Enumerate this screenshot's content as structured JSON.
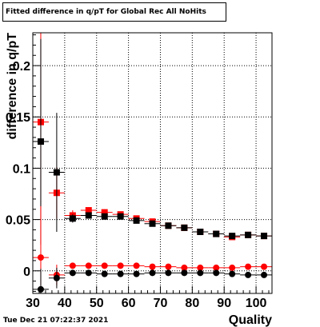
{
  "title": "Fitted difference in q/pT  for Global Rec All NoHits",
  "timestamp": "Tue Dec 21 07:22:37 2021",
  "chart_data": {
    "type": "scatter",
    "title": "Fitted difference in q/pT  for Global Rec All NoHits",
    "xlabel": "Quality",
    "ylabel": "difference in q/pT",
    "xlim": [
      30,
      105
    ],
    "ylim": [
      -0.022,
      0.232
    ],
    "grid": true,
    "x_ticks": [
      30,
      40,
      50,
      60,
      70,
      80,
      90,
      100
    ],
    "x_tick_labels": [
      "30",
      "40",
      "50",
      "60",
      "70",
      "80",
      "90",
      "100"
    ],
    "y_ticks": [
      0,
      0.05,
      0.1,
      0.15,
      0.2
    ],
    "y_tick_labels": [
      "0",
      "0.05",
      "0.1",
      "0.15",
      "0.2"
    ],
    "series": [
      {
        "marker": "square",
        "color": "#ff0000",
        "x": [
          32.5,
          37.5,
          42.5,
          47.5,
          52.5,
          57.5,
          62.5,
          67.5,
          72.5,
          77.5,
          82.5,
          87.5,
          92.5,
          97.5,
          102.5
        ],
        "y": [
          0.145,
          0.076,
          0.054,
          0.059,
          0.057,
          0.055,
          0.051,
          0.048,
          0.044,
          0.042,
          0.038,
          0.036,
          0.033,
          0.035,
          0.034
        ],
        "yerr": [
          0.12,
          0.025,
          0.005,
          0.003,
          0.003,
          0.002,
          0.002,
          0.002,
          0.002,
          0.002,
          0.002,
          0.002,
          0.002,
          0.002,
          0.002
        ]
      },
      {
        "marker": "square",
        "color": "#000000",
        "x": [
          32.5,
          37.5,
          42.5,
          47.5,
          52.5,
          57.5,
          62.5,
          67.5,
          72.5,
          77.5,
          82.5,
          87.5,
          92.5,
          97.5,
          102.5
        ],
        "y": [
          0.126,
          0.096,
          0.051,
          0.054,
          0.053,
          0.053,
          0.049,
          0.046,
          0.044,
          0.042,
          0.038,
          0.036,
          0.034,
          0.035,
          0.034
        ],
        "yerr": [
          0.1,
          0.058,
          0.004,
          0.003,
          0.003,
          0.002,
          0.002,
          0.002,
          0.002,
          0.002,
          0.002,
          0.002,
          0.002,
          0.002,
          0.002
        ]
      },
      {
        "marker": "circle",
        "color": "#ff0000",
        "x": [
          32.5,
          37.5,
          42.5,
          47.5,
          52.5,
          57.5,
          62.5,
          67.5,
          72.5,
          77.5,
          82.5,
          87.5,
          92.5,
          97.5,
          102.5
        ],
        "y": [
          0.013,
          -0.004,
          0.005,
          0.005,
          0.005,
          0.005,
          0.005,
          0.004,
          0.004,
          0.003,
          0.003,
          0.003,
          0.003,
          0.004,
          0.004
        ],
        "yerr": [
          0.05,
          0.01,
          0.002,
          0.001,
          0.001,
          0.001,
          0.001,
          0.001,
          0.001,
          0.001,
          0.001,
          0.001,
          0.001,
          0.001,
          0.001
        ]
      },
      {
        "marker": "circle",
        "color": "#000000",
        "x": [
          32.5,
          37.5,
          42.5,
          47.5,
          52.5,
          57.5,
          62.5,
          67.5,
          72.5,
          77.5,
          82.5,
          87.5,
          92.5,
          97.5,
          102.5
        ],
        "y": [
          -0.018,
          -0.007,
          -0.002,
          -0.002,
          -0.003,
          -0.003,
          -0.003,
          -0.002,
          -0.002,
          -0.002,
          -0.002,
          -0.002,
          -0.003,
          -0.004,
          -0.004
        ],
        "yerr": [
          0.02,
          0.01,
          0.002,
          0.001,
          0.001,
          0.001,
          0.001,
          0.001,
          0.001,
          0.001,
          0.001,
          0.001,
          0.001,
          0.001,
          0.001
        ]
      }
    ]
  }
}
